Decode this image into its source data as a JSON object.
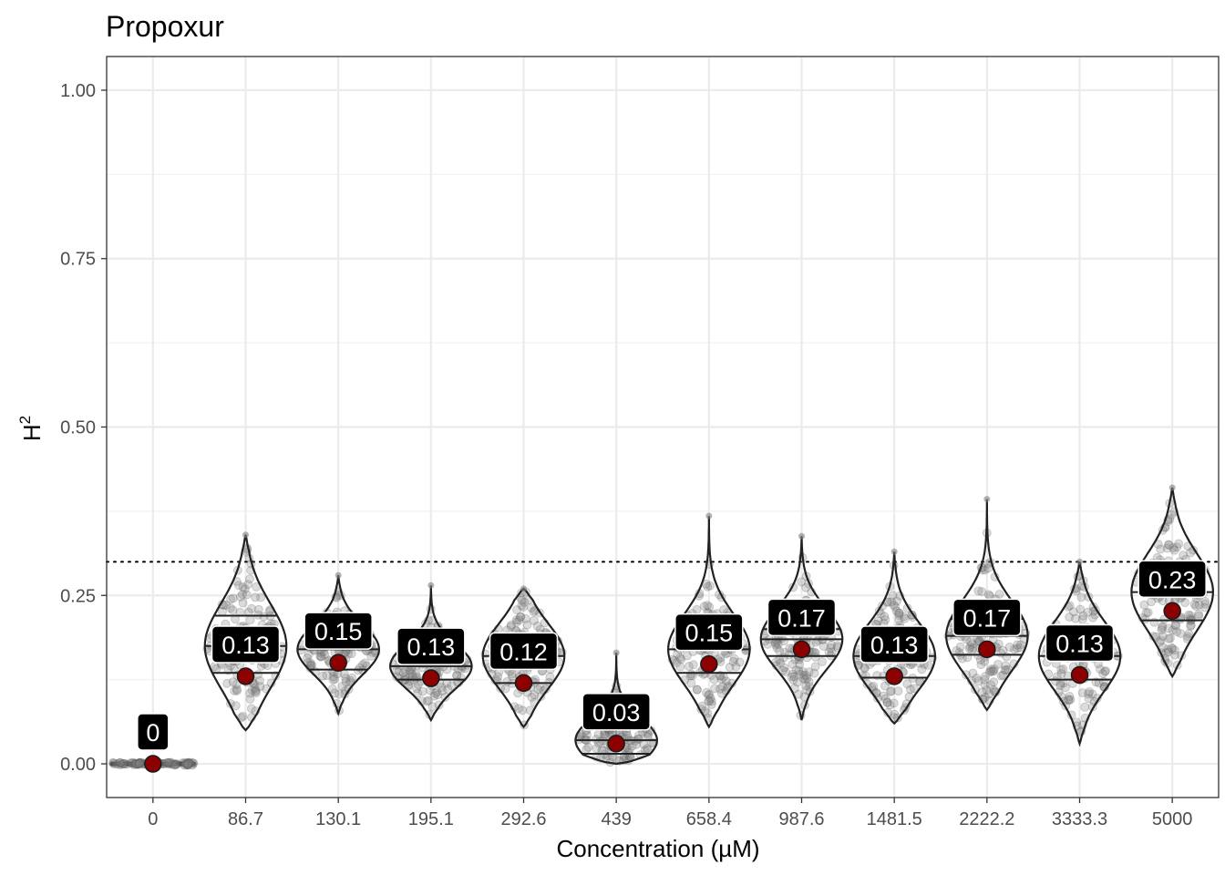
{
  "chart_data": {
    "type": "violin",
    "title": "Propoxur",
    "xlabel": "Concentration (µM)",
    "ylabel": "H",
    "ylabel_superscript": "2",
    "ylim": [
      -0.05,
      1.05
    ],
    "y_ticks": [
      0.0,
      0.25,
      0.5,
      0.75,
      1.0
    ],
    "y_tick_labels": [
      "0.00",
      "0.25",
      "0.50",
      "0.75",
      "1.00"
    ],
    "threshold": 0.3,
    "threshold_style": "dotted",
    "grid": true,
    "colors": {
      "point_fill": "#8b0000",
      "violin_outline": "#222222",
      "jitter": "#808080",
      "label_bg": "#000000",
      "label_text": "#ffffff",
      "grid": "#ebebeb"
    },
    "categories": [
      "0",
      "86.7",
      "130.1",
      "195.1",
      "292.6",
      "439",
      "658.4",
      "987.6",
      "1481.5",
      "2222.2",
      "3333.3",
      "5000"
    ],
    "groups": [
      {
        "category": "0",
        "point": 0.0,
        "label": "0",
        "min": 0.0,
        "max": 0.0,
        "q1": 0.0,
        "median": 0.0,
        "q3": 0.0
      },
      {
        "category": "86.7",
        "point": 0.13,
        "label": "0.13",
        "min": 0.05,
        "max": 0.34,
        "q1": 0.135,
        "median": 0.175,
        "q3": 0.22
      },
      {
        "category": "130.1",
        "point": 0.15,
        "label": "0.15",
        "min": 0.075,
        "max": 0.28,
        "q1": 0.14,
        "median": 0.17,
        "q3": 0.19
      },
      {
        "category": "195.1",
        "point": 0.127,
        "label": "0.13",
        "min": 0.065,
        "max": 0.265,
        "q1": 0.125,
        "median": 0.145,
        "q3": 0.165
      },
      {
        "category": "292.6",
        "point": 0.12,
        "label": "0.12",
        "min": 0.055,
        "max": 0.26,
        "q1": 0.12,
        "median": 0.16,
        "q3": 0.185
      },
      {
        "category": "439",
        "point": 0.03,
        "label": "0.03",
        "min": 0.0,
        "max": 0.165,
        "q1": 0.015,
        "median": 0.035,
        "q3": 0.06
      },
      {
        "category": "658.4",
        "point": 0.148,
        "label": "0.15",
        "min": 0.055,
        "max": 0.368,
        "q1": 0.135,
        "median": 0.17,
        "q3": 0.205
      },
      {
        "category": "987.6",
        "point": 0.17,
        "label": "0.17",
        "min": 0.065,
        "max": 0.338,
        "q1": 0.16,
        "median": 0.185,
        "q3": 0.2
      },
      {
        "category": "1481.5",
        "point": 0.13,
        "label": "0.13",
        "min": 0.06,
        "max": 0.315,
        "q1": 0.128,
        "median": 0.16,
        "q3": 0.195
      },
      {
        "category": "2222.2",
        "point": 0.17,
        "label": "0.17",
        "min": 0.08,
        "max": 0.393,
        "q1": 0.162,
        "median": 0.19,
        "q3": 0.215
      },
      {
        "category": "3333.3",
        "point": 0.132,
        "label": "0.13",
        "min": 0.03,
        "max": 0.3,
        "q1": 0.125,
        "median": 0.16,
        "q3": 0.195
      },
      {
        "category": "5000",
        "point": 0.227,
        "label": "0.23",
        "min": 0.13,
        "max": 0.41,
        "q1": 0.213,
        "median": 0.255,
        "q3": 0.29
      }
    ]
  }
}
